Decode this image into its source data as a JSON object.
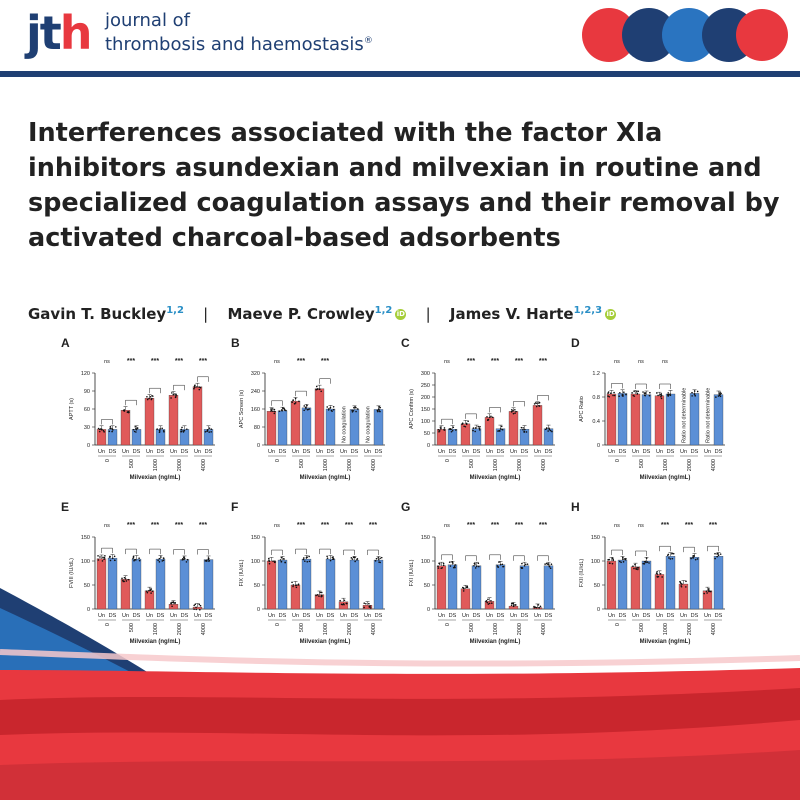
{
  "header": {
    "logo_text_a": "jt",
    "logo_text_b": "h",
    "journal_line1": "journal of",
    "journal_line2": "thrombosis and haemostasis",
    "journal_reg": "®",
    "colors": {
      "navy": "#1f3f73",
      "red": "#e8383f",
      "blue": "#2a74c0"
    }
  },
  "title": "Interferences associated with the factor XIa inhibitors asundexian and milvexian in routine and specialized coagulation assays and their removal by activated charcoal-based adsorbents",
  "authors": [
    {
      "name": "Gavin T. Buckley",
      "affil": "1,2",
      "orcid": false
    },
    {
      "name": "Maeve P. Crowley",
      "affil": "1,2",
      "orcid": true
    },
    {
      "name": "James V. Harte",
      "affil": "1,2,3",
      "orcid": true
    }
  ],
  "author_separator": "|",
  "chart_common": {
    "xlabel": "Milvexian (ng/mL)",
    "concentrations": [
      "0",
      "500",
      "1000",
      "2000",
      "4000"
    ],
    "group_labels": [
      "Un",
      "DS"
    ],
    "series_colors": {
      "Un": "#e05a5a",
      "DS": "#5b8fd6"
    }
  },
  "chart_data": [
    {
      "type": "bar",
      "panel": "A",
      "ylabel": "APTT (s)",
      "ylim": [
        0,
        120
      ],
      "yticks": [
        0,
        30,
        60,
        90,
        120
      ],
      "series": [
        {
          "name": "Un",
          "values": [
            26,
            58,
            78,
            83,
            97
          ]
        },
        {
          "name": "DS",
          "values": [
            26,
            26,
            26,
            26,
            26
          ]
        }
      ],
      "significance": [
        "ns",
        "***",
        "***",
        "***",
        "***"
      ],
      "annotations": []
    },
    {
      "type": "bar",
      "panel": "B",
      "ylabel": "APC Screen (s)",
      "ylim": [
        0,
        320
      ],
      "yticks": [
        0,
        80,
        160,
        240,
        320
      ],
      "series": [
        {
          "name": "Un",
          "values": [
            150,
            195,
            250,
            null,
            null
          ]
        },
        {
          "name": "DS",
          "values": [
            152,
            165,
            160,
            158,
            158
          ]
        }
      ],
      "significance": [
        "ns",
        "***",
        "***",
        "",
        ""
      ],
      "annotations": [
        "",
        "",
        "",
        "No coagulation",
        "No coagulation"
      ]
    },
    {
      "type": "bar",
      "panel": "C",
      "ylabel": "APC Confirm (s)",
      "ylim": [
        0,
        300
      ],
      "yticks": [
        0,
        50,
        100,
        150,
        200,
        250,
        300
      ],
      "series": [
        {
          "name": "Un",
          "values": [
            65,
            88,
            115,
            140,
            165
          ]
        },
        {
          "name": "DS",
          "values": [
            66,
            68,
            68,
            66,
            68
          ]
        }
      ],
      "significance": [
        "ns",
        "***",
        "***",
        "***",
        "***"
      ],
      "annotations": []
    },
    {
      "type": "bar",
      "panel": "D",
      "ylabel": "APC Ratio",
      "ylim": [
        0,
        1.2
      ],
      "yticks": [
        0,
        0.4,
        0.8,
        1.2
      ],
      "series": [
        {
          "name": "Un",
          "values": [
            0.85,
            0.85,
            0.82,
            null,
            null
          ]
        },
        {
          "name": "DS",
          "values": [
            0.86,
            0.84,
            0.85,
            0.86,
            0.84
          ]
        }
      ],
      "significance": [
        "ns",
        "ns",
        "ns",
        "",
        ""
      ],
      "annotations": [
        "",
        "",
        "",
        "Ratio not determinable",
        "Ratio not determinable"
      ]
    },
    {
      "type": "bar",
      "panel": "E",
      "ylabel": "FVIII (IU/dL)",
      "ylim": [
        0,
        150
      ],
      "yticks": [
        0,
        50,
        100,
        150
      ],
      "series": [
        {
          "name": "Un",
          "values": [
            105,
            62,
            38,
            10,
            4
          ]
        },
        {
          "name": "DS",
          "values": [
            106,
            104,
            104,
            103,
            103
          ]
        }
      ],
      "significance": [
        "ns",
        "***",
        "***",
        "***",
        "***"
      ],
      "annotations": []
    },
    {
      "type": "bar",
      "panel": "F",
      "ylabel": "FIX (IU/dL)",
      "ylim": [
        0,
        150
      ],
      "yticks": [
        0,
        50,
        100,
        150
      ],
      "series": [
        {
          "name": "Un",
          "values": [
            100,
            50,
            30,
            15,
            8
          ]
        },
        {
          "name": "DS",
          "values": [
            102,
            104,
            104,
            102,
            102
          ]
        }
      ],
      "significance": [
        "ns",
        "***",
        "***",
        "***",
        "***"
      ],
      "annotations": []
    },
    {
      "type": "bar",
      "panel": "G",
      "ylabel": "FXI (IU/dL)",
      "ylim": [
        0,
        150
      ],
      "yticks": [
        0,
        50,
        100,
        150
      ],
      "series": [
        {
          "name": "Un",
          "values": [
            90,
            42,
            16,
            6,
            3
          ]
        },
        {
          "name": "DS",
          "values": [
            92,
            90,
            92,
            90,
            90
          ]
        }
      ],
      "significance": [
        "ns",
        "***",
        "***",
        "***",
        "***"
      ],
      "annotations": []
    },
    {
      "type": "bar",
      "panel": "H",
      "ylabel": "FXII (IU/dL)",
      "ylim": [
        0,
        150
      ],
      "yticks": [
        0,
        50,
        100,
        150
      ],
      "series": [
        {
          "name": "Un",
          "values": [
            100,
            88,
            72,
            52,
            38
          ]
        },
        {
          "name": "DS",
          "values": [
            102,
            100,
            110,
            108,
            110
          ]
        }
      ],
      "significance": [
        "ns",
        "ns",
        "***",
        "***",
        "***"
      ],
      "annotations": []
    }
  ]
}
